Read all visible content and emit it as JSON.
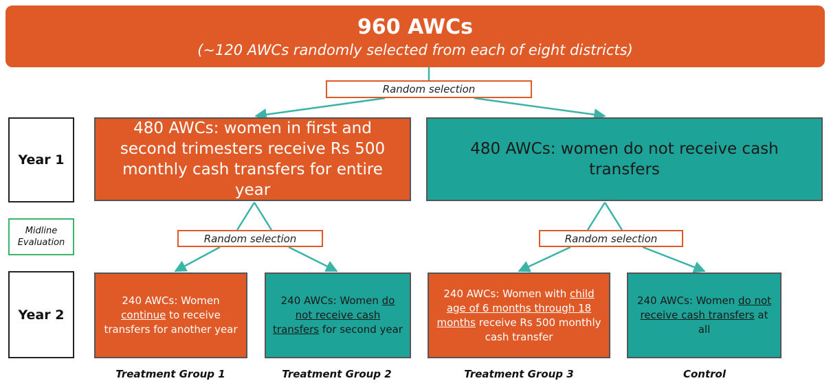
{
  "header": {
    "title": "960 AWCs",
    "subtitle": "(~120 AWCs randomly selected from each of eight districts)"
  },
  "selections": [
    "Random selection",
    "Random selection",
    "Random selection"
  ],
  "rows": [
    "Year 1",
    "Midline Evaluation",
    "Year 2"
  ],
  "year1_boxes": [
    "480 AWCs: women in first and second trimesters receive Rs 500 monthly cash transfers for entire year",
    "480 AWCs: women do not receive cash transfers"
  ],
  "year2_boxes": [
    [
      "240 AWCs: Women ",
      "continue",
      " to receive transfers for another year"
    ],
    [
      "240 AWCs: Women ",
      "do not receive cash transfers",
      " for second year"
    ],
    [
      "240 AWCs: Women with ",
      "child age of 6 months through 18 months",
      " receive Rs 500 monthly cash transfer"
    ],
    [
      "240 AWCs: Women ",
      "do not receive cash transfers",
      " at all"
    ]
  ],
  "groups": [
    "Treatment Group 1",
    "Treatment Group 2",
    "Treatment Group 3",
    "Control"
  ]
}
